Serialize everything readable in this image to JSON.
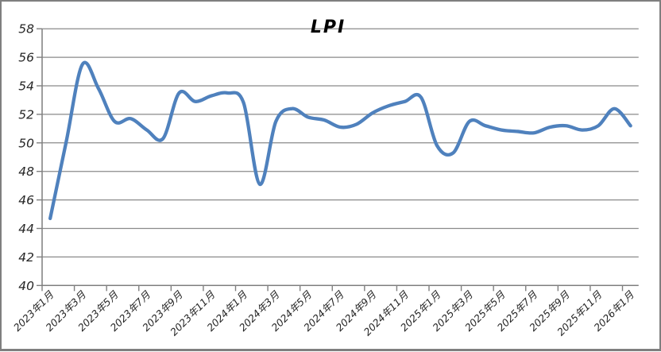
{
  "window": {
    "background": "#ffffff",
    "border_color": "#7f7f7f"
  },
  "chart_data": {
    "type": "line",
    "title": "LPI",
    "smooth": true,
    "grid": true,
    "legend_position": "none",
    "line_color": "#4F81BD",
    "gridline_color": "#8a8a8a",
    "axis_color": "#7f7f7f",
    "text_color": "#262626",
    "ylim": [
      40,
      58
    ],
    "y_tick_step": 2,
    "y_tick_labels": [
      "40",
      "42",
      "44",
      "46",
      "48",
      "50",
      "52",
      "54",
      "56",
      "58"
    ],
    "x_label_interval": 2,
    "x_tick_labels": [
      "2023年1月",
      "2023年3月",
      "2023年5月",
      "2023年7月",
      "2023年9月",
      "2023年11月",
      "2024年1月",
      "2024年3月",
      "2024年5月",
      "2024年7月",
      "2024年9月",
      "2024年11月",
      "2025年1月",
      "2025年3月",
      "2025年5月",
      "2025年7月",
      "2025年9月",
      "2025年11月",
      "2026年1月"
    ],
    "categories": [
      "2023年1月",
      "2023年2月",
      "2023年3月",
      "2023年4月",
      "2023年5月",
      "2023年6月",
      "2023年7月",
      "2023年8月",
      "2023年9月",
      "2023年10月",
      "2023年11月",
      "2023年12月",
      "2024年1月",
      "2024年2月",
      "2024年3月",
      "2024年4月",
      "2024年5月",
      "2024年6月",
      "2024年7月",
      "2024年8月",
      "2024年9月",
      "2024年10月",
      "2024年11月",
      "2024年12月",
      "2025年1月",
      "2025年2月",
      "2025年3月",
      "2025年4月",
      "2025年5月",
      "2025年6月",
      "2025年7月",
      "2025年8月",
      "2025年9月",
      "2025年10月",
      "2025年11月",
      "2025年12月",
      "2026年1月"
    ],
    "series": [
      {
        "name": "LPI",
        "values": [
          44.7,
          50.1,
          55.5,
          53.8,
          51.5,
          51.7,
          50.9,
          50.3,
          53.5,
          52.9,
          53.3,
          53.5,
          52.8,
          47.1,
          51.5,
          52.4,
          51.8,
          51.6,
          51.1,
          51.3,
          52.1,
          52.6,
          52.9,
          53.2,
          49.8,
          49.3,
          51.5,
          51.2,
          50.9,
          50.8,
          50.7,
          51.1,
          51.2,
          50.9,
          51.2,
          52.4,
          51.2
        ]
      }
    ]
  }
}
